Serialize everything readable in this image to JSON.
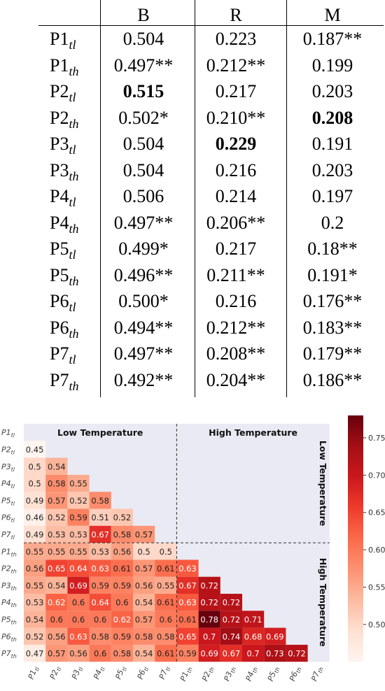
{
  "table": {
    "columns": [
      "B",
      "R",
      "M"
    ],
    "rows": [
      {
        "base": "P1",
        "sub": "tl",
        "vals": [
          {
            "t": "0.504"
          },
          {
            "t": "0.223"
          },
          {
            "t": "0.187**"
          }
        ]
      },
      {
        "base": "P1",
        "sub": "th",
        "vals": [
          {
            "t": "0.497**"
          },
          {
            "t": "0.212**"
          },
          {
            "t": "0.199"
          }
        ]
      },
      {
        "base": "P2",
        "sub": "tl",
        "vals": [
          {
            "t": "0.515",
            "b": true
          },
          {
            "t": "0.217"
          },
          {
            "t": "0.203"
          }
        ]
      },
      {
        "base": "P2",
        "sub": "th",
        "vals": [
          {
            "t": "0.502*"
          },
          {
            "t": "0.210**"
          },
          {
            "t": "0.208",
            "b": true
          }
        ]
      },
      {
        "base": "P3",
        "sub": "tl",
        "vals": [
          {
            "t": "0.504"
          },
          {
            "t": "0.229",
            "b": true
          },
          {
            "t": "0.191"
          }
        ]
      },
      {
        "base": "P3",
        "sub": "th",
        "vals": [
          {
            "t": "0.504"
          },
          {
            "t": "0.216"
          },
          {
            "t": "0.203"
          }
        ]
      },
      {
        "base": "P4",
        "sub": "tl",
        "vals": [
          {
            "t": "0.506"
          },
          {
            "t": "0.214"
          },
          {
            "t": "0.197"
          }
        ]
      },
      {
        "base": "P4",
        "sub": "th",
        "vals": [
          {
            "t": "0.497**"
          },
          {
            "t": "0.206**"
          },
          {
            "t": "0.2"
          }
        ]
      },
      {
        "base": "P5",
        "sub": "tl",
        "vals": [
          {
            "t": "0.499*"
          },
          {
            "t": "0.217"
          },
          {
            "t": "0.18**"
          }
        ]
      },
      {
        "base": "P5",
        "sub": "th",
        "vals": [
          {
            "t": "0.496**"
          },
          {
            "t": "0.211**"
          },
          {
            "t": "0.191*"
          }
        ]
      },
      {
        "base": "P6",
        "sub": "tl",
        "vals": [
          {
            "t": "0.500*"
          },
          {
            "t": "0.216"
          },
          {
            "t": "0.176**"
          }
        ]
      },
      {
        "base": "P6",
        "sub": "th",
        "vals": [
          {
            "t": "0.494**"
          },
          {
            "t": "0.212**"
          },
          {
            "t": "0.183**"
          }
        ]
      },
      {
        "base": "P7",
        "sub": "tl",
        "vals": [
          {
            "t": "0.497**"
          },
          {
            "t": "0.208**"
          },
          {
            "t": "0.179**"
          }
        ]
      },
      {
        "base": "P7",
        "sub": "th",
        "vals": [
          {
            "t": "0.492**"
          },
          {
            "t": "0.204**"
          },
          {
            "t": "0.186**"
          }
        ]
      }
    ]
  },
  "chart_data": {
    "type": "heatmap",
    "labels": [
      {
        "base": "P1",
        "sub": "tl"
      },
      {
        "base": "P2",
        "sub": "tl"
      },
      {
        "base": "P3",
        "sub": "tl"
      },
      {
        "base": "P4",
        "sub": "tl"
      },
      {
        "base": "P5",
        "sub": "tl"
      },
      {
        "base": "P6",
        "sub": "tl"
      },
      {
        "base": "P7",
        "sub": "tl"
      },
      {
        "base": "P1",
        "sub": "th"
      },
      {
        "base": "P2",
        "sub": "th"
      },
      {
        "base": "P3",
        "sub": "th"
      },
      {
        "base": "P4",
        "sub": "th"
      },
      {
        "base": "P5",
        "sub": "th"
      },
      {
        "base": "P6",
        "sub": "th"
      },
      {
        "base": "P7",
        "sub": "th"
      }
    ],
    "lower_triangle": [
      [],
      [
        "0.45"
      ],
      [
        "0.5",
        "0.54"
      ],
      [
        "0.5",
        "0.58",
        "0.55"
      ],
      [
        "0.49",
        "0.57",
        "0.52",
        "0.58"
      ],
      [
        "0.46",
        "0.52",
        "0.59",
        "0.51",
        "0.52"
      ],
      [
        "0.49",
        "0.53",
        "0.53",
        "0.67",
        "0.58",
        "0.57"
      ],
      [
        "0.55",
        "0.55",
        "0.55",
        "0.53",
        "0.56",
        "0.5",
        "0.5"
      ],
      [
        "0.56",
        "0.65",
        "0.64",
        "0.63",
        "0.61",
        "0.57",
        "0.61",
        "0.63"
      ],
      [
        "0.55",
        "0.54",
        "0.69",
        "0.59",
        "0.59",
        "0.56",
        "0.55",
        "0.67",
        "0.72"
      ],
      [
        "0.53",
        "0.62",
        "0.6",
        "0.64",
        "0.6",
        "0.54",
        "0.61",
        "0.63",
        "0.72",
        "0.72"
      ],
      [
        "0.54",
        "0.6",
        "0.6",
        "0.6",
        "0.62",
        "0.57",
        "0.6",
        "0.61",
        "0.78",
        "0.72",
        "0.71"
      ],
      [
        "0.52",
        "0.56",
        "0.63",
        "0.58",
        "0.59",
        "0.58",
        "0.58",
        "0.65",
        "0.7",
        "0.74",
        "0.68",
        "0.69"
      ],
      [
        "0.47",
        "0.57",
        "0.56",
        "0.6",
        "0.58",
        "0.54",
        "0.61",
        "0.59",
        "0.69",
        "0.67",
        "0.7",
        "0.73",
        "0.72"
      ]
    ],
    "regions": {
      "top_left": "Low Temperature",
      "top_right": "High Temperature",
      "right_upper": "Low Temperature",
      "right_lower": "High Temperature"
    },
    "colorbar": {
      "ticks": [
        "0.75",
        "0.70",
        "0.65",
        "0.60",
        "0.55",
        "0.50"
      ],
      "range": [
        0.45,
        0.78
      ],
      "colors": {
        "low": "#fff5f0",
        "high": "#67000d"
      }
    },
    "background": "#e9eaf3"
  }
}
